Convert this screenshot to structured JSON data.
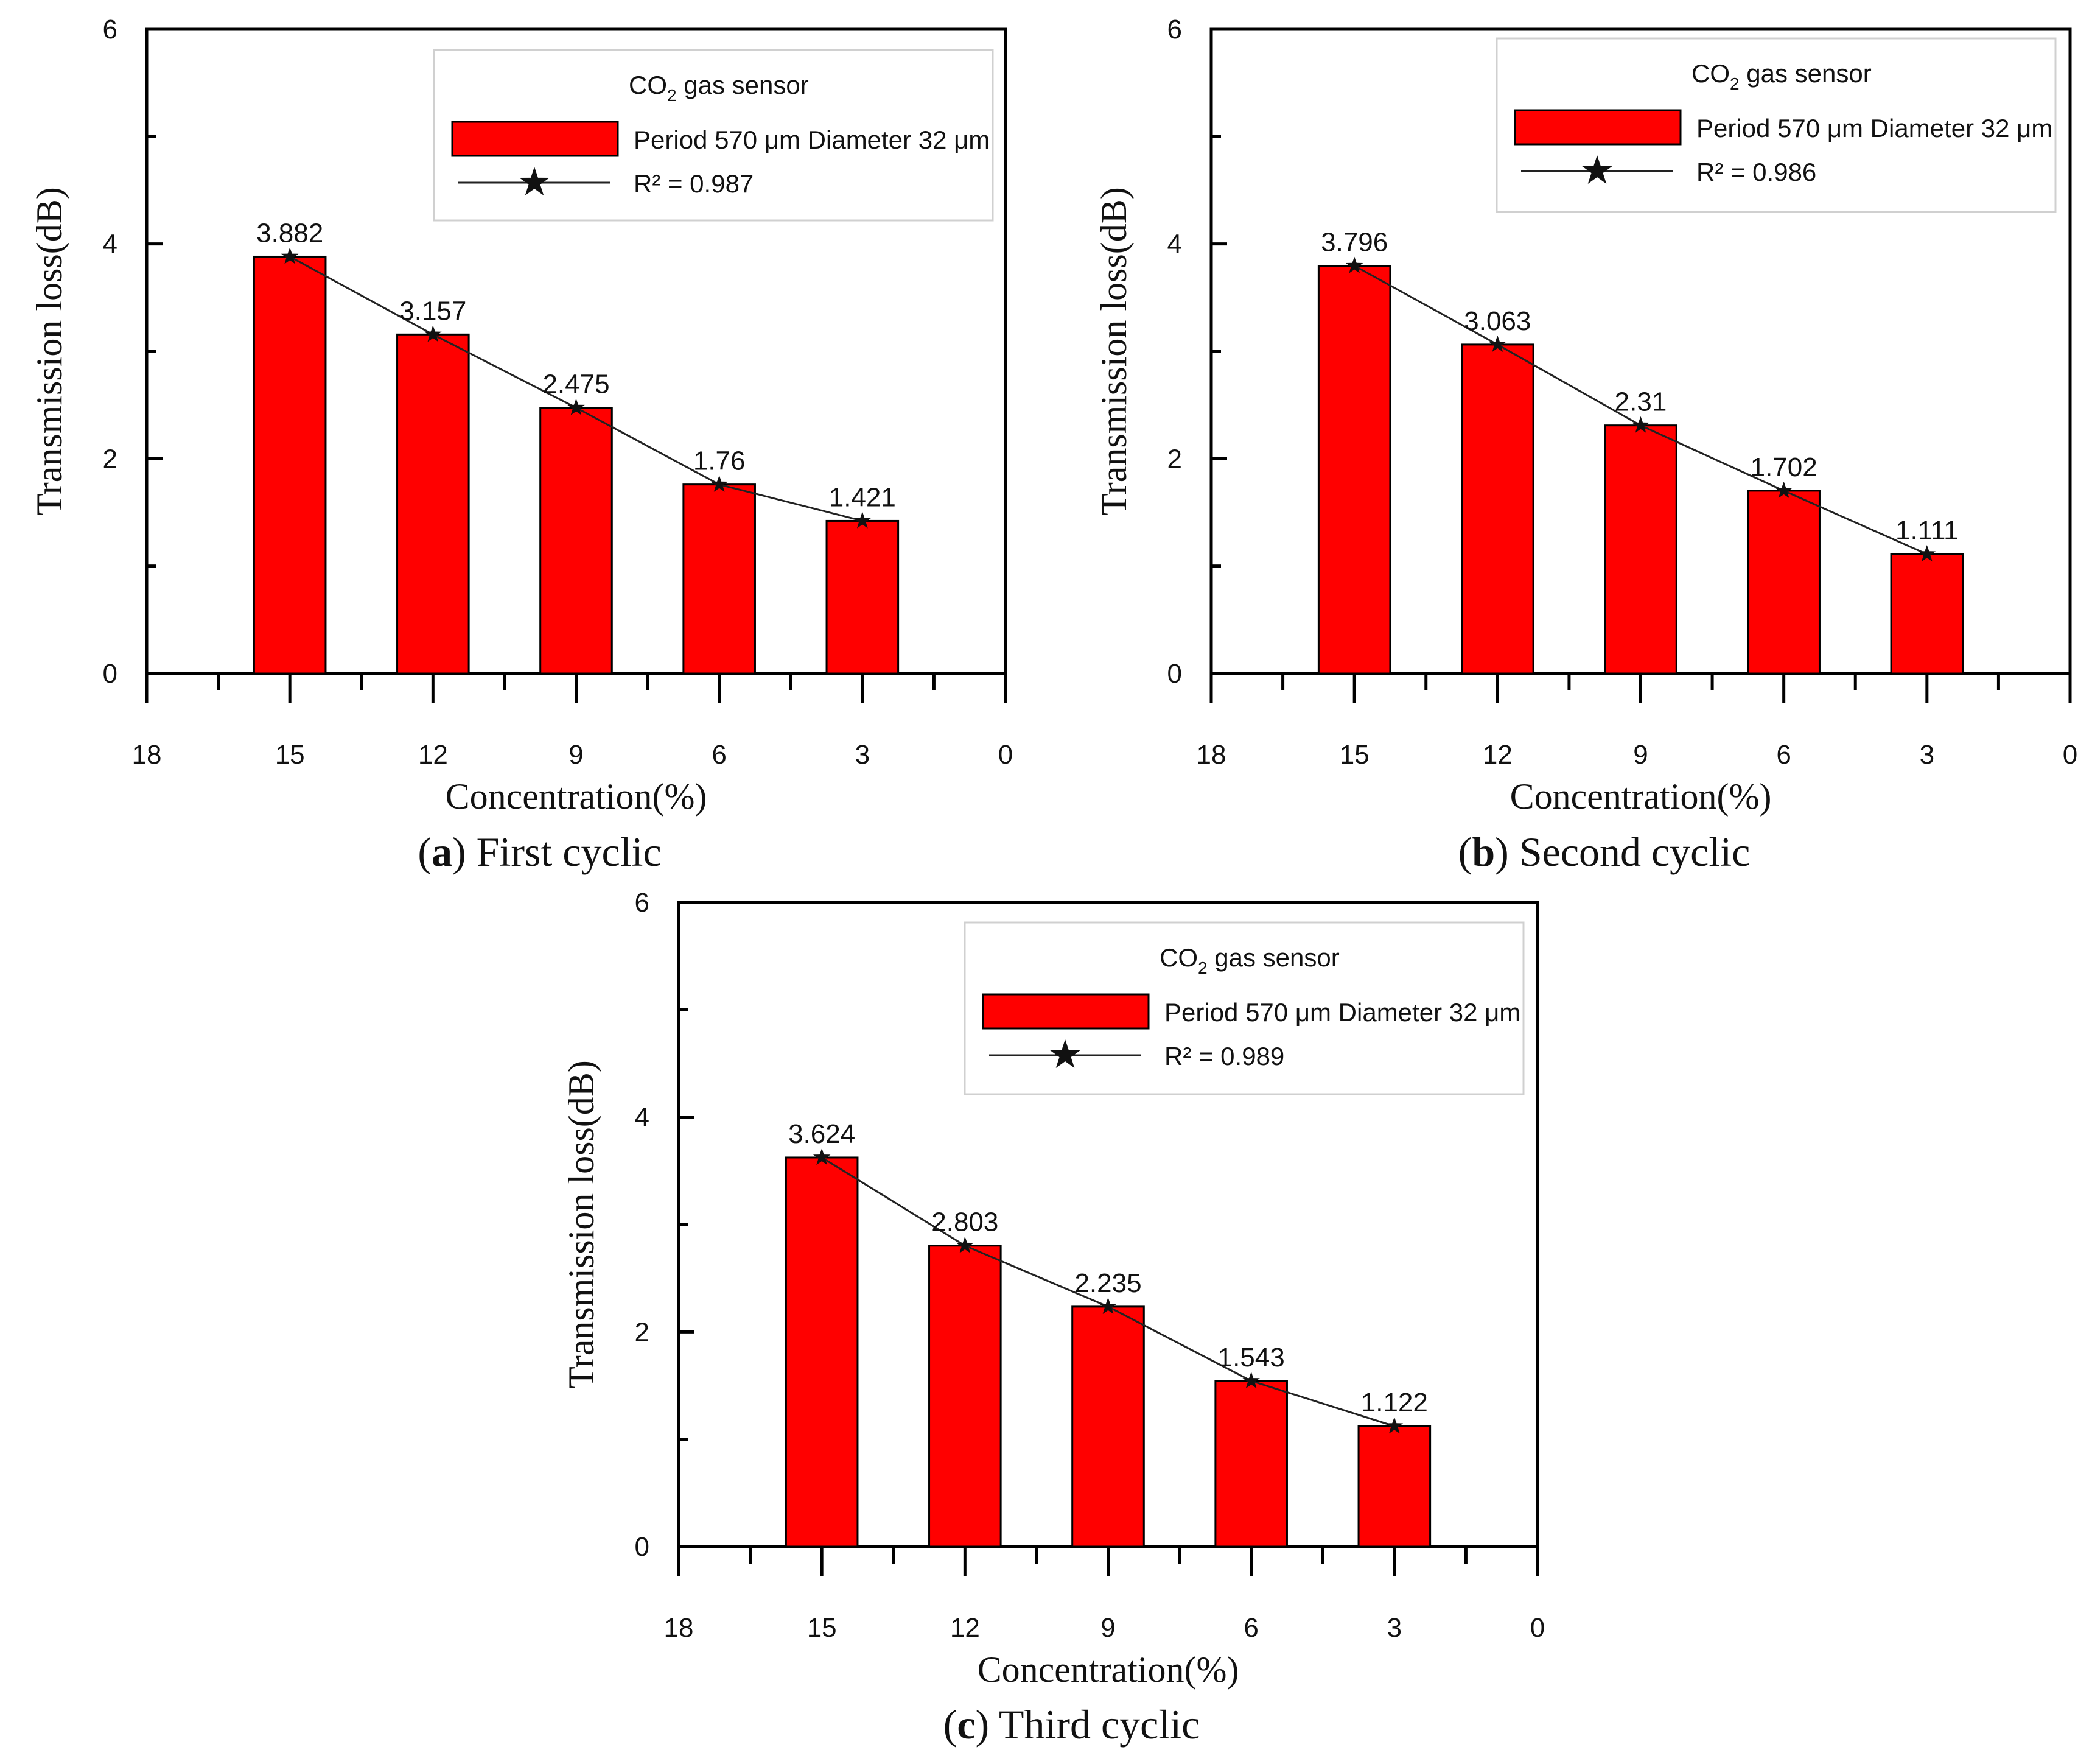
{
  "colors": {
    "bar": "#ff0000",
    "line": "#222222",
    "axis": "#000000"
  },
  "chart_data": [
    {
      "type": "bar",
      "caption_letter": "a",
      "caption_text": "First cyclic",
      "ylabel": "Transmission loss(dB)",
      "xlabel": "Concentration(%)",
      "ylim": [
        0,
        6
      ],
      "xlim": [
        18,
        0
      ],
      "yticks": [
        "0",
        "2",
        "4",
        "6"
      ],
      "xticks": [
        "18",
        "15",
        "12",
        "9",
        "6",
        "3",
        "0"
      ],
      "x": [
        15,
        12,
        9,
        6,
        3
      ],
      "values": [
        3.882,
        3.157,
        2.475,
        1.76,
        1.421
      ],
      "labels": [
        "3.882",
        "3.157",
        "2.475",
        "1.76",
        "1.421"
      ],
      "legend": {
        "title_main": "CO",
        "title_sub": "2",
        "title_rest": " gas sensor",
        "bar_label": "Period 570 μm Diameter 32 μm",
        "line_label": "R² = 0.987"
      }
    },
    {
      "type": "bar",
      "caption_letter": "b",
      "caption_text": "Second cyclic",
      "ylabel": "Transmission loss(dB)",
      "xlabel": "Concentration(%)",
      "ylim": [
        0,
        6
      ],
      "xlim": [
        18,
        0
      ],
      "yticks": [
        "0",
        "2",
        "4",
        "6"
      ],
      "xticks": [
        "18",
        "15",
        "12",
        "9",
        "6",
        "3",
        "0"
      ],
      "x": [
        15,
        12,
        9,
        6,
        3
      ],
      "values": [
        3.796,
        3.063,
        2.31,
        1.702,
        1.111
      ],
      "labels": [
        "3.796",
        "3.063",
        "2.31",
        "1.702",
        "1.111"
      ],
      "legend": {
        "title_main": "CO",
        "title_sub": "2",
        "title_rest": " gas sensor",
        "bar_label": "Period 570 μm Diameter 32 μm",
        "line_label": "R² = 0.986"
      }
    },
    {
      "type": "bar",
      "caption_letter": "c",
      "caption_text": "Third cyclic",
      "ylabel": "Transmission loss(dB)",
      "xlabel": "Concentration(%)",
      "ylim": [
        0,
        6
      ],
      "xlim": [
        18,
        0
      ],
      "yticks": [
        "0",
        "2",
        "4",
        "6"
      ],
      "xticks": [
        "18",
        "15",
        "12",
        "9",
        "6",
        "3",
        "0"
      ],
      "x": [
        15,
        12,
        9,
        6,
        3
      ],
      "values": [
        3.624,
        2.803,
        2.235,
        1.543,
        1.122
      ],
      "labels": [
        "3.624",
        "2.803",
        "2.235",
        "1.543",
        "1.122"
      ],
      "legend": {
        "title_main": "CO",
        "title_sub": "2",
        "title_rest": " gas sensor",
        "bar_label": "Period 570 μm Diameter 32 μm",
        "line_label": "R² = 0.989"
      }
    }
  ]
}
